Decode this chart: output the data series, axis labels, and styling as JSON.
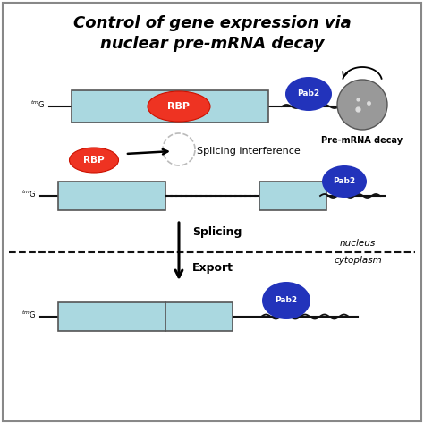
{
  "title_line1": "Control of gene expression via",
  "title_line2": "nuclear pre-mRNA decay",
  "title_fontsize": 13,
  "bg_color": "#ffffff",
  "border_color": "#888888",
  "light_blue": "#aad8e0",
  "dark_blue": "#2233bb",
  "red_rbp": "#ee3322",
  "gray_circle": "#999999",
  "line_color": "#111111",
  "nucleus_label": "nucleus",
  "cytoplasm_label": "cytoplasm",
  "splicing_label": "Splicing",
  "export_label": "Export",
  "splicing_interference_label": "Splicing interference",
  "premrna_decay_label": "Pre-mRNA decay"
}
